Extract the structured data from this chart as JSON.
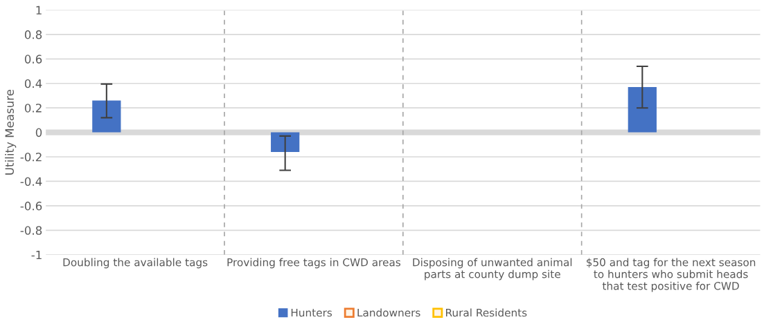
{
  "chart_data": {
    "type": "bar",
    "ylabel": "Utility Measure",
    "categories": [
      "Doubling the available tags",
      "Providing free tags in CWD areas",
      "Disposing of unwanted animal\nparts at county dump site",
      "$50 and tag for the next season\nto hunters who submit heads\nthat test positive for CWD"
    ],
    "series": [
      {
        "name": "Hunters",
        "color": "#4472c4",
        "values": [
          0.26,
          -0.16,
          null,
          0.37
        ],
        "errors": [
          [
            0.12,
            0.395
          ],
          [
            -0.31,
            -0.03
          ],
          null,
          [
            0.2,
            0.54
          ]
        ]
      },
      {
        "name": "Landowners",
        "color": "#ed7d31",
        "values": [
          null,
          null,
          null,
          null
        ]
      },
      {
        "name": "Rural Residents",
        "color": "#ffc000",
        "values": [
          null,
          null,
          null,
          null
        ]
      }
    ],
    "ylim": [
      -1,
      1
    ],
    "yticks": [
      -1,
      -0.8,
      -0.6,
      -0.4,
      -0.2,
      0,
      0.2,
      0.4,
      0.6,
      0.8,
      1
    ],
    "grid": "y",
    "legend": "bottom"
  }
}
